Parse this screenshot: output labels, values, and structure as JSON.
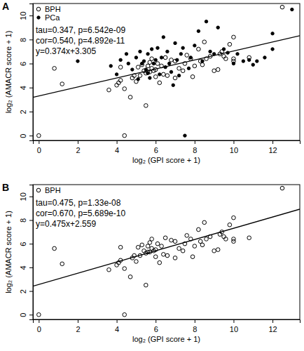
{
  "chart_data": [
    {
      "type": "scatter",
      "title": "A",
      "x_label": "log₂ (GPI score + 1)",
      "y_label": "log₂ (AMACR score + 1)",
      "xlim": [
        -0.3,
        13.4
      ],
      "ylim": [
        -0.4,
        11.0
      ],
      "xticks": [
        0,
        2,
        4,
        6,
        8,
        10,
        12
      ],
      "yticks": [
        0,
        2,
        4,
        6,
        8,
        10
      ],
      "legend": "top-left",
      "annotations": [
        "tau=0.347, p=6.542e-09",
        "cor=0.540, p=4.892e-11",
        "y=0.374x+3.305"
      ],
      "fit": {
        "slope": 0.374,
        "intercept": 3.305
      },
      "series": [
        {
          "name": "BPH",
          "color": "#000000",
          "marker": "open",
          "x": [
            0,
            0.8,
            1.2,
            4.4,
            3.6,
            4.0,
            4.1,
            4.2,
            4.2,
            4.4,
            4.7,
            4.8,
            4.9,
            5.0,
            5.1,
            5.2,
            5.3,
            5.4,
            5.5,
            5.5,
            5.6,
            5.6,
            5.7,
            5.7,
            5.8,
            5.8,
            5.9,
            6.0,
            6.0,
            6.1,
            6.2,
            6.3,
            6.4,
            6.5,
            6.6,
            6.8,
            7.0,
            7.0,
            7.2,
            7.4,
            7.5,
            7.6,
            7.8,
            7.9,
            8.0,
            8.2,
            8.3,
            8.4,
            8.5,
            8.6,
            8.8,
            9.0,
            9.2,
            9.3,
            9.4,
            9.5,
            9.6,
            9.8,
            10.0,
            10.0,
            10.0,
            10.8,
            12.5
          ],
          "values": [
            0,
            5.6,
            4.3,
            0,
            3.8,
            4.2,
            4.4,
            4.6,
            5.7,
            3.9,
            3.2,
            4.8,
            5.0,
            4.5,
            5.7,
            5.0,
            5.9,
            5.4,
            5.2,
            2.5,
            5.3,
            5.8,
            6.1,
            5.3,
            5.6,
            6.4,
            5.4,
            4.9,
            5.5,
            6.0,
            4.4,
            5.8,
            5.1,
            6.5,
            5.0,
            6.3,
            4.8,
            6.2,
            5.6,
            5.4,
            6.0,
            6.7,
            6.4,
            4.9,
            5.8,
            7.2,
            6.2,
            5.9,
            7.8,
            6.4,
            6.6,
            5.4,
            5.5,
            6.8,
            7.0,
            6.6,
            6.4,
            7.6,
            6.4,
            8.2,
            6.2,
            6.5,
            10.7
          ]
        },
        {
          "name": "PCa",
          "color": "#000000",
          "marker": "filled",
          "x": [
            2.0,
            3.7,
            4.0,
            4.2,
            4.5,
            4.6,
            4.8,
            5.0,
            5.1,
            5.2,
            5.3,
            5.4,
            5.5,
            5.6,
            5.6,
            5.7,
            5.8,
            5.9,
            6.0,
            6.1,
            6.2,
            6.3,
            6.4,
            6.5,
            6.6,
            6.7,
            6.8,
            6.9,
            7.0,
            7.1,
            7.2,
            7.3,
            7.4,
            7.5,
            7.7,
            7.8,
            8.0,
            8.2,
            8.4,
            8.6,
            8.8,
            9.0,
            9.2,
            9.5,
            9.7,
            10.0,
            10.2,
            10.5,
            10.8,
            11.0,
            11.2,
            11.6,
            12.0,
            12.0,
            13.0
          ],
          "values": [
            6.2,
            5.8,
            5.1,
            6.3,
            6.8,
            6.0,
            5.5,
            6.5,
            4.7,
            7.0,
            6.0,
            6.2,
            5.5,
            6.8,
            5.2,
            4.8,
            7.2,
            6.0,
            6.3,
            7.3,
            5.1,
            6.5,
            8.2,
            5.7,
            7.0,
            6.0,
            5.3,
            4.2,
            7.7,
            6.3,
            5.0,
            6.8,
            7.3,
            0.0,
            5.6,
            6.5,
            7.5,
            8.7,
            6.2,
            9.5,
            7.0,
            6.8,
            9.0,
            7.2,
            6.9,
            6.0,
            6.8,
            6.2,
            6.3,
            5.9,
            6.2,
            6.5,
            7.2,
            8.5,
            10.5
          ]
        }
      ]
    },
    {
      "type": "scatter",
      "title": "B",
      "x_label": "log₂ (GPI score + 1)",
      "y_label": "log₂ (AMACR score + 1)",
      "xlim": [
        -0.3,
        13.4
      ],
      "ylim": [
        -0.4,
        11.0
      ],
      "xticks": [
        0,
        2,
        4,
        6,
        8,
        10,
        12
      ],
      "yticks": [
        0,
        2,
        4,
        6,
        8,
        10
      ],
      "legend": "top-left",
      "annotations": [
        "tau=0.475, p=1.33e-08",
        "cor=0.670, p=5.689e-10",
        "y=0.475x+2.559"
      ],
      "fit": {
        "slope": 0.475,
        "intercept": 2.559
      },
      "series": [
        {
          "name": "BPH",
          "color": "#000000",
          "marker": "open",
          "x": [
            0,
            0.8,
            1.2,
            4.4,
            3.6,
            4.0,
            4.1,
            4.2,
            4.2,
            4.4,
            4.7,
            4.8,
            4.9,
            5.0,
            5.1,
            5.2,
            5.3,
            5.4,
            5.5,
            5.5,
            5.6,
            5.6,
            5.7,
            5.7,
            5.8,
            5.8,
            5.9,
            6.0,
            6.0,
            6.1,
            6.2,
            6.3,
            6.4,
            6.5,
            6.6,
            6.8,
            7.0,
            7.0,
            7.2,
            7.4,
            7.5,
            7.6,
            7.8,
            7.9,
            8.0,
            8.2,
            8.3,
            8.4,
            8.5,
            8.6,
            8.8,
            9.0,
            9.2,
            9.3,
            9.4,
            9.5,
            9.6,
            9.8,
            10.0,
            10.0,
            10.0,
            10.8,
            12.5
          ],
          "values": [
            0,
            5.6,
            4.3,
            0,
            3.8,
            4.2,
            4.4,
            4.6,
            5.7,
            3.9,
            3.2,
            4.8,
            5.0,
            4.5,
            5.7,
            5.0,
            5.9,
            5.4,
            5.2,
            2.5,
            5.3,
            5.8,
            6.1,
            5.3,
            5.6,
            6.4,
            5.4,
            4.9,
            5.5,
            6.0,
            4.4,
            5.8,
            5.1,
            6.5,
            5.0,
            6.3,
            4.8,
            6.2,
            5.6,
            5.4,
            6.0,
            6.7,
            6.4,
            4.9,
            5.8,
            7.2,
            6.2,
            5.9,
            7.8,
            6.4,
            6.6,
            5.4,
            5.5,
            6.8,
            7.0,
            6.6,
            6.4,
            7.6,
            6.4,
            8.2,
            6.2,
            6.5,
            10.7
          ]
        }
      ]
    }
  ]
}
